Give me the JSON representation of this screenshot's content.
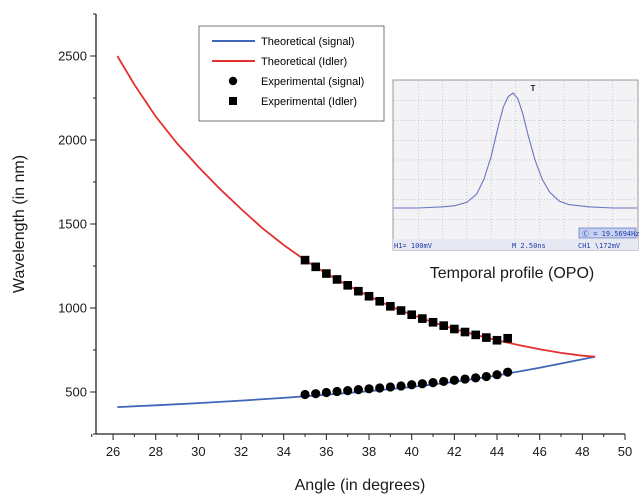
{
  "chart_data": {
    "type": "line",
    "xlabel": "Angle (in degrees)",
    "ylabel": "Wavelength (in nm)",
    "xlim": [
      25.2,
      50
    ],
    "ylim": [
      250,
      2750
    ],
    "x_ticks": [
      26,
      28,
      30,
      32,
      34,
      36,
      38,
      40,
      42,
      44,
      46,
      48,
      50
    ],
    "y_ticks": [
      500,
      1000,
      1500,
      2000,
      2500
    ],
    "grid": false,
    "legend_position": "top-center",
    "series": [
      {
        "name": "Theoretical (signal)",
        "kind": "line",
        "color": "#3f66b8",
        "x": [
          26.2,
          28,
          30,
          32,
          34,
          36,
          38,
          40,
          42,
          44,
          46,
          48.6
        ],
        "y": [
          410,
          421,
          434,
          449,
          465,
          484,
          505,
          530,
          560,
          598,
          644,
          710
        ]
      },
      {
        "name": "Theoretical (Idler)",
        "kind": "line",
        "color": "#e53030",
        "x": [
          26.2,
          27,
          28,
          29,
          30,
          31,
          32,
          33,
          34,
          35,
          36,
          37,
          38,
          39,
          40,
          41,
          42,
          43,
          44,
          45,
          46,
          47,
          48,
          48.6
        ],
        "y": [
          2500,
          2330,
          2140,
          1980,
          1840,
          1710,
          1590,
          1475,
          1375,
          1285,
          1205,
          1135,
          1070,
          1010,
          960,
          915,
          875,
          840,
          808,
          780,
          755,
          733,
          716,
          710
        ]
      },
      {
        "name": "Experimental (signal)",
        "kind": "scatter",
        "marker": "circle",
        "color": "#000000",
        "x": [
          35,
          35.5,
          36,
          36.5,
          37,
          37.5,
          38,
          38.5,
          39,
          39.5,
          40,
          40.5,
          41,
          41.5,
          42,
          42.5,
          43,
          43.5,
          44,
          44.5
        ],
        "y": [
          485,
          490,
          497,
          503,
          508,
          514,
          519,
          524,
          530,
          536,
          543,
          549,
          556,
          563,
          570,
          577,
          584,
          592,
          603,
          618
        ]
      },
      {
        "name": "Experimental (Idler)",
        "kind": "scatter",
        "marker": "square",
        "color": "#000000",
        "x": [
          35,
          35.5,
          36,
          36.5,
          37,
          37.5,
          38,
          38.5,
          39,
          39.5,
          40,
          40.5,
          41,
          41.5,
          42,
          42.5,
          43,
          43.5,
          44,
          44.5
        ],
        "y": [
          1285,
          1245,
          1205,
          1170,
          1135,
          1100,
          1070,
          1040,
          1010,
          985,
          960,
          937,
          915,
          895,
          875,
          857,
          840,
          824,
          808,
          820
        ]
      }
    ]
  },
  "inset": {
    "caption": "Temporal profile (OPO)",
    "bottom_left": "H1= 100mV",
    "bottom_mid": "M 2.50ns",
    "bottom_right": "CH1 \\172mV",
    "freq": "Ⓒ = 19.5694Hz",
    "trigger_marker": "T",
    "trace_color": "#6a76c0",
    "pulse": {
      "t": [
        0,
        0.1,
        0.2,
        0.25,
        0.3,
        0.34,
        0.37,
        0.4,
        0.43,
        0.45,
        0.47,
        0.49,
        0.51,
        0.53,
        0.55,
        0.58,
        0.61,
        0.64,
        0.68,
        0.72,
        0.8,
        0.9,
        1.0
      ],
      "amp": [
        0,
        0,
        0.01,
        0.02,
        0.05,
        0.12,
        0.25,
        0.45,
        0.72,
        0.88,
        0.97,
        1.0,
        0.95,
        0.82,
        0.65,
        0.42,
        0.25,
        0.14,
        0.06,
        0.03,
        0.01,
        0.0,
        0.0
      ]
    }
  }
}
